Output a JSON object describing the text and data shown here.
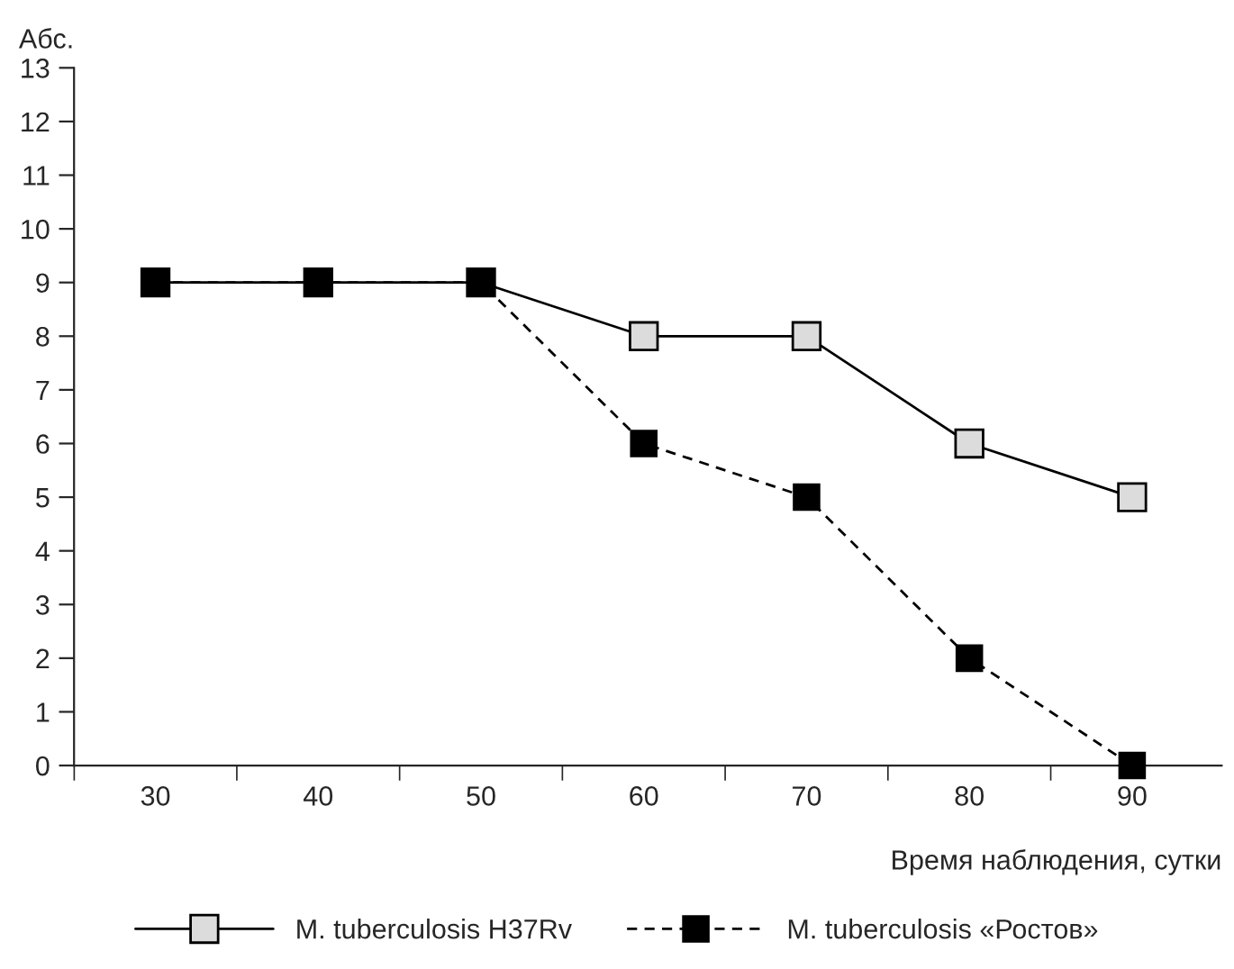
{
  "chart_data": {
    "type": "line",
    "ylabel": "Абс.",
    "xlabel": "Время наблюдения, сутки",
    "categories": [
      "30",
      "40",
      "50",
      "60",
      "70",
      "80",
      "90"
    ],
    "series": [
      {
        "name": "M. tuberculosis H37Rv",
        "color": "#dcdcdc",
        "values": [
          9,
          9,
          9,
          8,
          8,
          6,
          5
        ],
        "line_style": "solid"
      },
      {
        "name": "M. tuberculosis «Ростов»",
        "color": "#000000",
        "values": [
          9,
          9,
          9,
          6,
          5,
          2,
          0
        ],
        "line_style": "dashed"
      }
    ],
    "ylim": [
      0,
      13
    ],
    "yticks": [
      0,
      1,
      2,
      3,
      4,
      5,
      6,
      7,
      8,
      9,
      10,
      11,
      12,
      13
    ],
    "marker": "square",
    "grid": false,
    "legend": "bottom"
  }
}
